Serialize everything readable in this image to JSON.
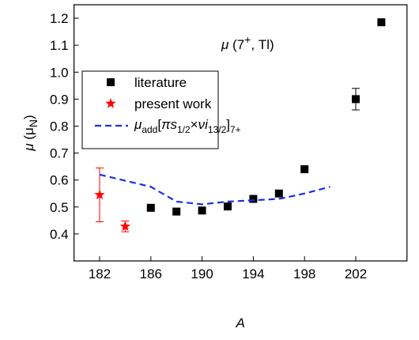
{
  "chart_data": {
    "type": "scatter",
    "annotation_parts": [
      {
        "text": "μ",
        "pos": "italic"
      },
      {
        "text": " (7",
        "pos": ""
      },
      {
        "text": "+",
        "pos": "super"
      },
      {
        "text": ", Tl)",
        "pos": ""
      }
    ],
    "x_label": "A",
    "y_label_parts": [
      {
        "text": "μ",
        "pos": "italic"
      },
      {
        "text": " (μ",
        "pos": ""
      },
      {
        "text": "N",
        "pos": "sub"
      },
      {
        "text": ")",
        "pos": ""
      }
    ],
    "xlim": [
      180,
      206
    ],
    "ylim": [
      0.3,
      1.25
    ],
    "xticks": [
      182,
      186,
      190,
      194,
      198,
      202
    ],
    "yticks": [
      0.4,
      0.5,
      0.6,
      0.7,
      0.8,
      0.9,
      {
        "value": 1,
        "label": "1.0"
      },
      1.1,
      1.2
    ],
    "series": [
      {
        "name": "literature",
        "color": "#000000",
        "marker": "square",
        "x": [
          186,
          188,
          190,
          192,
          194,
          196,
          198,
          202,
          204
        ],
        "values": [
          0.497,
          0.483,
          0.487,
          0.502,
          0.53,
          0.55,
          0.64,
          0.9,
          1.185
        ],
        "errors": [
          null,
          null,
          null,
          null,
          null,
          null,
          null,
          0.04,
          null
        ]
      },
      {
        "name": "present work",
        "color": "#ff0000",
        "marker": "star",
        "x": [
          182,
          184
        ],
        "values": [
          0.545,
          0.428
        ],
        "errors": [
          0.1,
          0.02
        ]
      },
      {
        "name_parts": [
          {
            "text": "μ",
            "pos": "italic"
          },
          {
            "text": "add",
            "pos": "sub"
          },
          {
            "text": "[",
            "pos": ""
          },
          {
            "text": "πs",
            "pos": "italic"
          },
          {
            "text": "1/2",
            "pos": "sub"
          },
          {
            "text": "×",
            "pos": ""
          },
          {
            "text": "νi",
            "pos": "italic"
          },
          {
            "text": "13/2",
            "pos": "sub"
          },
          {
            "text": "]",
            "pos": ""
          },
          {
            "text": "7+",
            "pos": "sub"
          }
        ],
        "color": "#1a2ee6",
        "marker": "dashed-line",
        "x": [
          182,
          186,
          188,
          190,
          192,
          194,
          196,
          198,
          200
        ],
        "values": [
          0.62,
          0.575,
          0.52,
          0.51,
          0.52,
          0.525,
          0.53,
          0.55,
          0.575
        ]
      }
    ]
  }
}
